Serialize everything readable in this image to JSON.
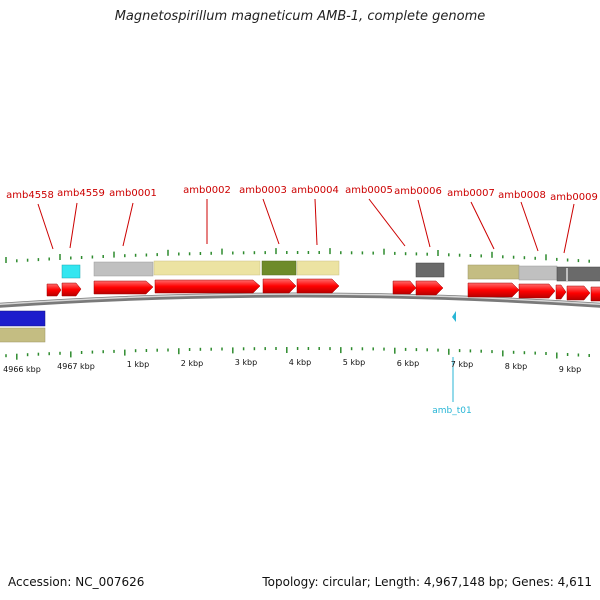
{
  "title": "Magnetospirillum magneticum AMB-1, complete genome",
  "footer": {
    "accession": "Accession: NC_007626",
    "summary": "Topology: circular; Length: 4,967,148 bp; Genes: 4,611"
  },
  "colors": {
    "gene_label": "#cc0000",
    "leader_line": "#cc0000",
    "cds_arrow": "#ff0000",
    "backbone": "#777777",
    "tick": "#2e8b2e",
    "rna_label": "#29b6d6",
    "rna_marker": "#29b6d6",
    "scale_text": "#111111"
  },
  "gene_labels": [
    {
      "label": "amb4558"
    },
    {
      "label": "amb4559"
    },
    {
      "label": "amb0001"
    },
    {
      "label": "amb0002"
    },
    {
      "label": "amb0003"
    },
    {
      "label": "amb0004"
    },
    {
      "label": "amb0005"
    },
    {
      "label": "amb0006"
    },
    {
      "label": "amb0007"
    },
    {
      "label": "amb0008"
    },
    {
      "label": "amb0009"
    }
  ],
  "scale_labels": [
    "4966 kbp",
    "4967 kbp",
    "1 kbp",
    "2 kbp",
    "3 kbp",
    "4 kbp",
    "5 kbp",
    "6 kbp",
    "7 kbp",
    "8 kbp",
    "9 kbp"
  ],
  "rna_feature": {
    "label": "amb_t01"
  },
  "legend_classes": [
    {
      "name": "cyan",
      "color": "#33e6f0"
    },
    {
      "name": "light-grey",
      "color": "#c0c0c0"
    },
    {
      "name": "khaki",
      "color": "#ece3a2"
    },
    {
      "name": "olive",
      "color": "#6e8b2a"
    },
    {
      "name": "dark-grey",
      "color": "#6a6a6a"
    },
    {
      "name": "tan",
      "color": "#c4bd82"
    },
    {
      "name": "blue",
      "color": "#1c1ccc"
    }
  ]
}
